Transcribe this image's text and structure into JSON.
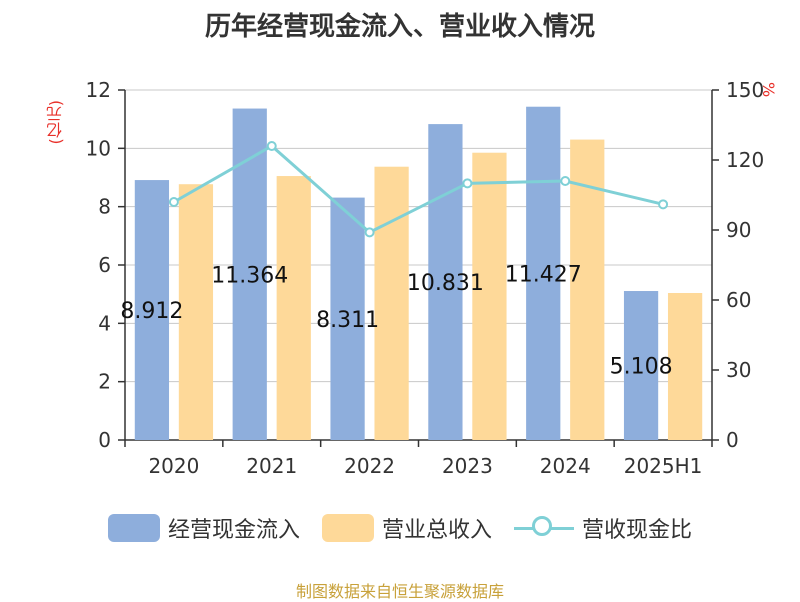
{
  "title": "历年经营现金流入、营业收入情况",
  "source": "制图数据来自恒生聚源数据库",
  "chart_data": {
    "type": "bar",
    "title": "历年经营现金流入、营业收入情况",
    "categories": [
      "2020",
      "2021",
      "2022",
      "2023",
      "2024",
      "2025H1"
    ],
    "y_left": {
      "unit": "(亿元)",
      "ylim": [
        0,
        12
      ],
      "ticks": [
        "0",
        "2",
        "4",
        "6",
        "8",
        "10",
        "12"
      ]
    },
    "y_right": {
      "unit": "%",
      "ylim": [
        0,
        150
      ],
      "ticks": [
        "0",
        "30",
        "60",
        "90",
        "120",
        "150"
      ]
    },
    "grid": true,
    "legend_position": "bottom",
    "series": [
      {
        "name": "经营现金流入",
        "type": "bar",
        "axis": "left",
        "color": "#8eaedc",
        "values": [
          8.912,
          11.364,
          8.311,
          10.831,
          11.427,
          5.108
        ],
        "labels": [
          "8.912",
          "11.364",
          "8.311",
          "10.831",
          "11.427",
          "5.108"
        ]
      },
      {
        "name": "营业总收入",
        "type": "bar",
        "axis": "left",
        "color": "#fed999",
        "values": [
          8.77,
          9.05,
          9.37,
          9.85,
          10.3,
          5.04
        ]
      },
      {
        "name": "营收现金比",
        "type": "line",
        "axis": "right",
        "color": "#7fd0d6",
        "values": [
          102,
          126,
          89,
          110,
          111,
          101
        ]
      }
    ]
  }
}
